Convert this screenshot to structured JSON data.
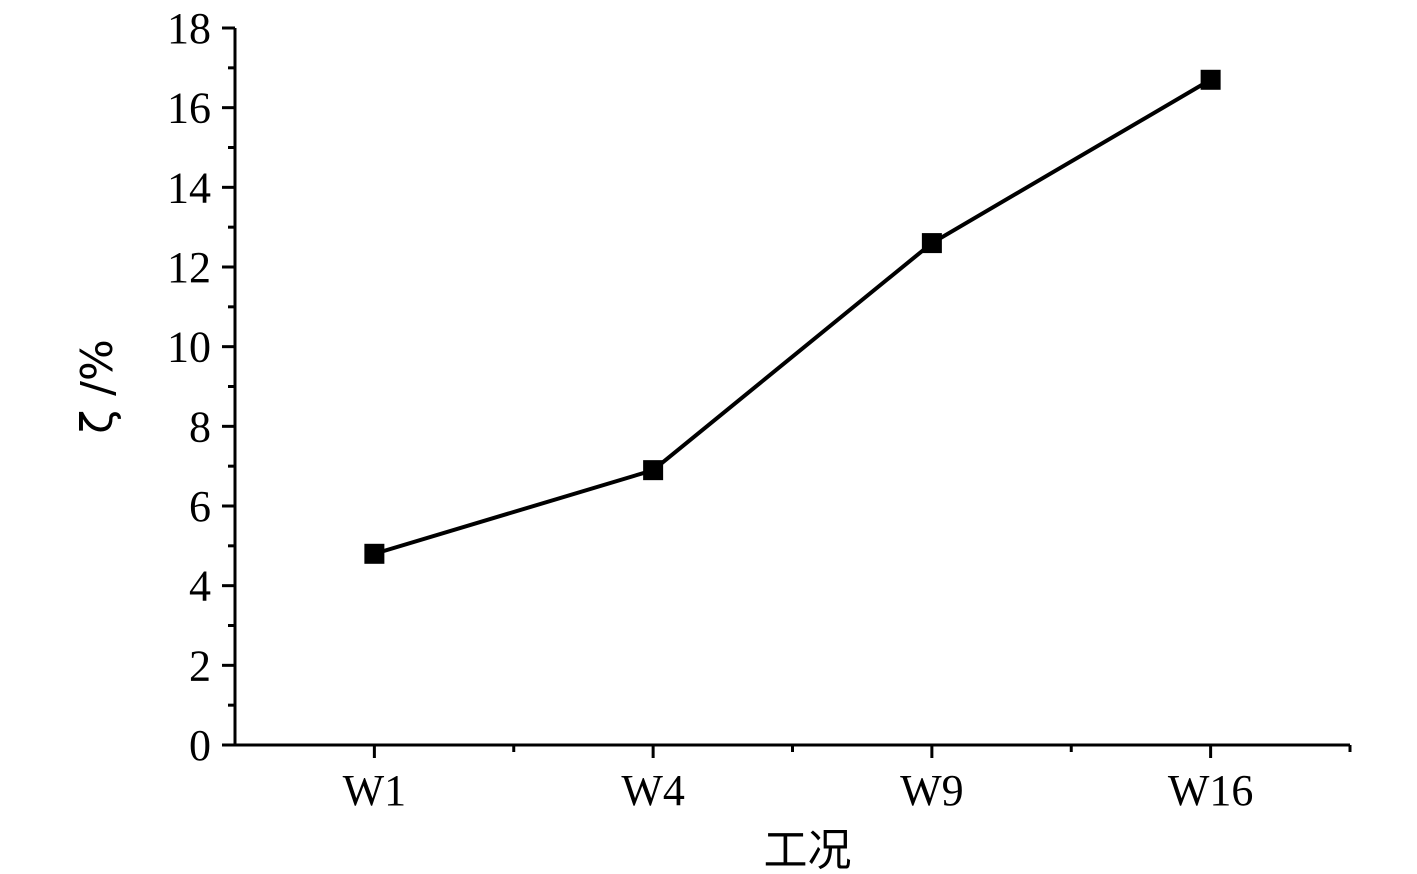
{
  "chart_data": {
    "type": "line",
    "categories": [
      "W1",
      "W4",
      "W9",
      "W16"
    ],
    "series": [
      {
        "values": [
          4.8,
          6.9,
          12.6,
          16.7
        ],
        "color": "#000000",
        "marker": "square"
      }
    ],
    "xlabel": "工况",
    "ylabel": "ζ /%",
    "ylim": [
      0,
      18
    ],
    "yticks": [
      0,
      2,
      4,
      6,
      8,
      10,
      12,
      14,
      16,
      18
    ],
    "grid": false,
    "legend": "none"
  }
}
